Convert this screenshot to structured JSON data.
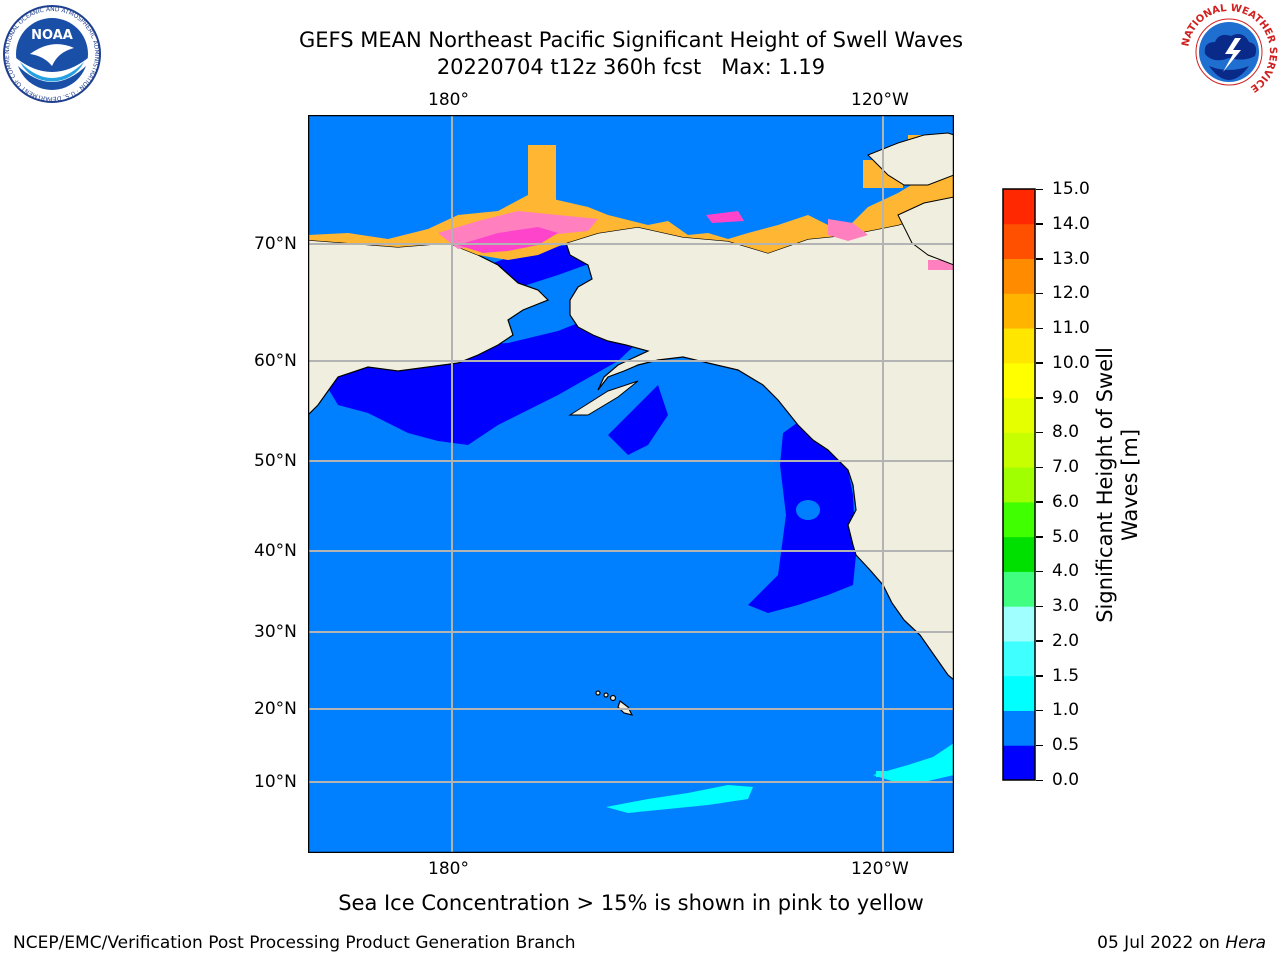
{
  "header": {
    "title_line1": "GEFS MEAN Northeast Pacific Significant Height of Swell Waves",
    "title_line2": "20220704 t12z 360h fcst   Max: 1.19"
  },
  "logos": {
    "left": {
      "text": "NOAA",
      "ring": "NATIONAL OCEANIC AND ATMOSPHERIC ADMINISTRATION · U.S. DEPARTMENT OF COMMERCE"
    },
    "right": {
      "ring": "NATIONAL WEATHER SERVICE"
    }
  },
  "map": {
    "top_lon_labels": [
      "180°",
      "120°W"
    ],
    "bottom_lon_labels": [
      "180°",
      "120°W"
    ],
    "lat_labels": [
      "70°N",
      "60°N",
      "50°N",
      "40°N",
      "30°N",
      "20°N",
      "10°N"
    ],
    "colors": {
      "ocean": "#0080ff",
      "land": "#f0efdf",
      "deep_blue": "#0000ff",
      "cyan": "#00ffff",
      "grid": "#b3b3b3"
    }
  },
  "colorbar": {
    "label": "Significant Height of Swell\nWaves [m]",
    "ticks": [
      "15.0",
      "14.0",
      "13.0",
      "12.0",
      "11.0",
      "10.0",
      "9.0",
      "8.0",
      "7.0",
      "6.0",
      "5.0",
      "4.0",
      "3.0",
      "2.0",
      "1.5",
      "1.0",
      "0.5",
      "0.0"
    ],
    "colors_bottom_to_top": [
      "#0000ff",
      "#0080ff",
      "#00ffff",
      "#40ffff",
      "#a0ffff",
      "#40ff80",
      "#00e000",
      "#40ff00",
      "#a0ff00",
      "#c8ff00",
      "#e6ff00",
      "#ffff00",
      "#ffe600",
      "#ffb400",
      "#ff8c00",
      "#ff5000",
      "#ff2800"
    ]
  },
  "caption": "Sea Ice Concentration > 15% is shown in pink to yellow",
  "footer": {
    "left": "NCEP/EMC/Verification Post Processing Product Generation Branch",
    "right_date": "05 Jul 2022 on ",
    "right_host": "Hera"
  }
}
